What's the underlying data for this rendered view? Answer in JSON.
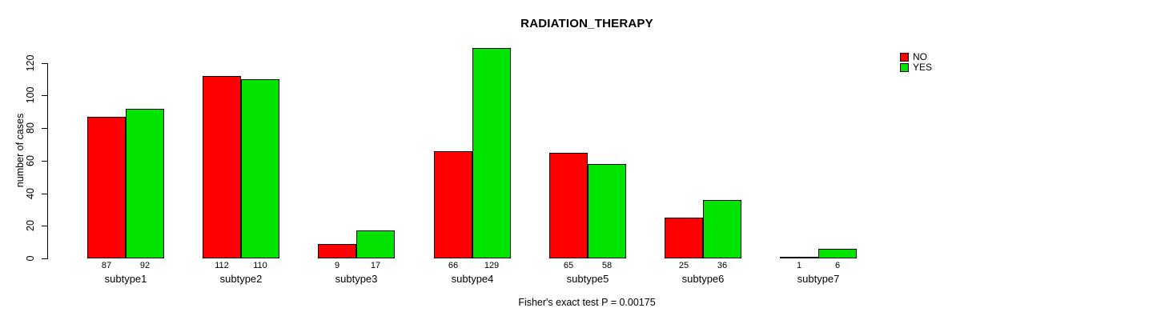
{
  "page": {
    "background": "#ffffff"
  },
  "chart_data": {
    "type": "bar",
    "title": "RADIATION_THERAPY",
    "ylabel": "number of cases",
    "xlabel": "",
    "annotation": "Fisher's exact test P = 0.00175",
    "categories": [
      "subtype1",
      "subtype2",
      "subtype3",
      "subtype4",
      "subtype5",
      "subtype6",
      "subtype7"
    ],
    "series": [
      {
        "name": "NO",
        "color": "#ff0000",
        "values": [
          87,
          112,
          9,
          66,
          65,
          25,
          1
        ]
      },
      {
        "name": "YES",
        "color": "#00e400",
        "values": [
          92,
          110,
          17,
          129,
          58,
          36,
          6
        ]
      }
    ],
    "yticks": [
      0,
      20,
      40,
      60,
      80,
      100,
      120
    ],
    "ylim": [
      0,
      130
    ],
    "grid": false,
    "legend_position": "top-right",
    "bar_value_labels": true
  }
}
